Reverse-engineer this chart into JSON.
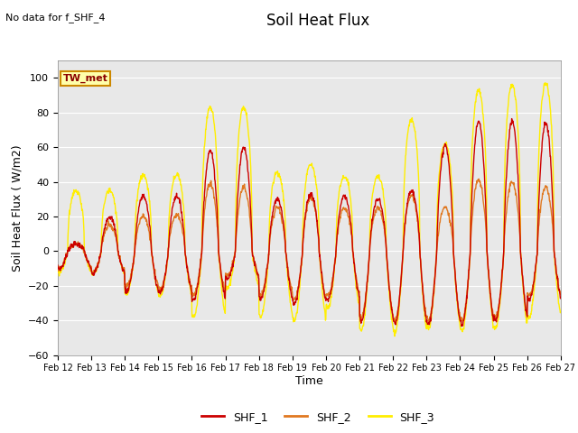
{
  "title": "Soil Heat Flux",
  "ylabel": "Soil Heat Flux ( W/m2)",
  "xlabel": "Time",
  "note": "No data for f_SHF_4",
  "tw_met_label": "TW_met",
  "ylim": [
    -60,
    110
  ],
  "yticks": [
    -60,
    -40,
    -20,
    0,
    20,
    40,
    60,
    80,
    100
  ],
  "x_labels": [
    "Feb 12",
    "Feb 13",
    "Feb 14",
    "Feb 15",
    "Feb 16",
    "Feb 17",
    "Feb 18",
    "Feb 19",
    "Feb 20",
    "Feb 21",
    "Feb 22",
    "Feb 23",
    "Feb 24",
    "Feb 25",
    "Feb 26",
    "Feb 27"
  ],
  "color_shf1": "#cc0000",
  "color_shf2": "#e07820",
  "color_shf3": "#ffee00",
  "bg_color": "#e8e8e8",
  "legend_labels": [
    "SHF_1",
    "SHF_2",
    "SHF_3"
  ],
  "num_days": 15,
  "points_per_day": 96
}
